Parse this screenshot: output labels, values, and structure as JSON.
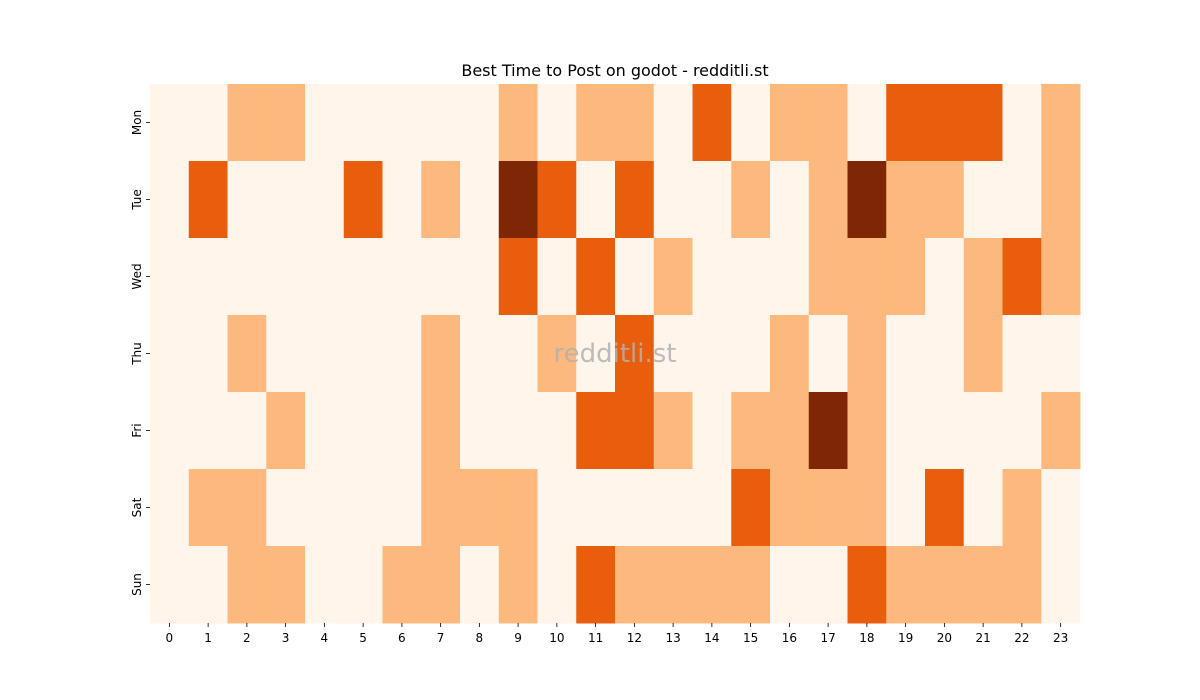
{
  "chart_data": {
    "type": "heatmap",
    "title": "Best Time to Post on godot - redditli.st",
    "watermark": "redditli.st",
    "x_categories": [
      "0",
      "1",
      "2",
      "3",
      "4",
      "5",
      "6",
      "7",
      "8",
      "9",
      "10",
      "11",
      "12",
      "13",
      "14",
      "15",
      "16",
      "17",
      "18",
      "19",
      "20",
      "21",
      "22",
      "23"
    ],
    "y_categories": [
      "Mon",
      "Tue",
      "Wed",
      "Thu",
      "Fri",
      "Sat",
      "Sun"
    ],
    "xlabel": "",
    "ylabel": "",
    "colormap": "Oranges",
    "levels": {
      "0": "#fff5eb",
      "1": "#fdb97d",
      "2": "#e95e0d",
      "3": "#7f2704"
    },
    "values": [
      [
        0,
        0,
        1,
        1,
        0,
        0,
        0,
        0,
        0,
        1,
        0,
        1,
        1,
        0,
        2,
        0,
        1,
        1,
        0,
        2,
        2,
        2,
        0,
        1
      ],
      [
        0,
        2,
        0,
        0,
        0,
        2,
        0,
        1,
        0,
        3,
        2,
        0,
        2,
        0,
        0,
        1,
        0,
        1,
        3,
        1,
        1,
        0,
        0,
        1
      ],
      [
        0,
        0,
        0,
        0,
        0,
        0,
        0,
        0,
        0,
        2,
        0,
        2,
        0,
        1,
        0,
        0,
        0,
        1,
        1,
        1,
        0,
        1,
        2,
        1
      ],
      [
        0,
        0,
        1,
        0,
        0,
        0,
        0,
        1,
        0,
        0,
        1,
        0,
        2,
        0,
        0,
        0,
        1,
        0,
        1,
        0,
        0,
        1,
        0,
        0
      ],
      [
        0,
        0,
        0,
        1,
        0,
        0,
        0,
        1,
        0,
        0,
        0,
        2,
        2,
        1,
        0,
        1,
        1,
        3,
        1,
        0,
        0,
        0,
        0,
        1
      ],
      [
        0,
        1,
        1,
        0,
        0,
        0,
        0,
        1,
        1,
        1,
        0,
        0,
        0,
        0,
        0,
        2,
        1,
        1,
        1,
        0,
        2,
        0,
        1,
        0
      ],
      [
        0,
        0,
        1,
        1,
        0,
        0,
        1,
        1,
        0,
        1,
        0,
        2,
        1,
        1,
        1,
        1,
        0,
        0,
        2,
        1,
        1,
        1,
        1,
        0
      ]
    ]
  }
}
